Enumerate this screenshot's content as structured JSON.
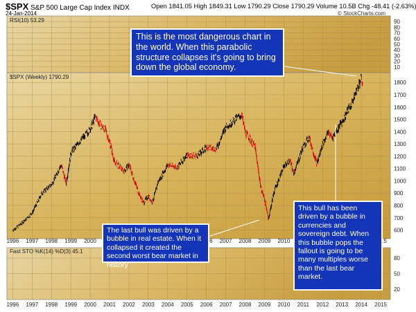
{
  "header": {
    "symbol": "$SPX",
    "name": "S&P 500 Large Cap Index",
    "exchange": "INDX",
    "date": "24-Jan-2014",
    "quote": "Open 1841.05  High 1849.31  Low 1790.29  Close 1790.29  Volume 10.5B  Chg -48.41 (-2.63%) ▼",
    "source": "© StockCharts.com"
  },
  "panels": {
    "rsi_label": "RSI(10) 53.29",
    "price_label": "$SPX (Weekly) 1790.29",
    "sto_label": "Fast STO %K(14) %D(3) 45.1"
  },
  "callouts": {
    "top": "This is the most dangerous chart in the world. When this parabolic structure collapses it's going to bring down the global economy.",
    "left": "The last bull was driven by a bubble in real estate. When it collapsed it created the second worst bear market in history",
    "right": "This bull has been driven by a bubble in currencies and sovereign debt. When this bubble pops the fallout is going to be many multiples worse than the last bear market."
  },
  "colors": {
    "background": "#d9b45f",
    "candle_up": "#000000",
    "candle_down": "#d40000",
    "callout_bg": "#1535b8",
    "callout_text": "#ffffff"
  },
  "chart_data": {
    "type": "line",
    "series_label": "$SPX (Weekly) 1790.29",
    "x_ticks": [
      "1996",
      "1997",
      "1998",
      "1999",
      "2000",
      "2001",
      "2002",
      "2003",
      "2004",
      "2005",
      "2006",
      "2007",
      "2008",
      "2009",
      "2010",
      "2011",
      "2012",
      "2013",
      "2014",
      "2015"
    ],
    "x": [
      1996.0,
      1996.5,
      1997.0,
      1997.5,
      1998.0,
      1998.5,
      1998.75,
      1999.0,
      1999.5,
      2000.0,
      2000.25,
      2000.5,
      2000.75,
      2001.0,
      2001.25,
      2001.75,
      2002.0,
      2002.5,
      2002.75,
      2003.0,
      2003.2,
      2003.5,
      2004.0,
      2004.5,
      2005.0,
      2005.5,
      2006.0,
      2006.5,
      2007.0,
      2007.5,
      2007.8,
      2008.0,
      2008.5,
      2008.8,
      2009.0,
      2009.2,
      2009.5,
      2010.0,
      2010.3,
      2010.5,
      2011.0,
      2011.3,
      2011.7,
      2012.0,
      2012.3,
      2012.5,
      2013.0,
      2013.5,
      2014.0,
      2014.07
    ],
    "y": [
      600,
      660,
      740,
      900,
      970,
      1130,
      980,
      1230,
      1330,
      1420,
      1520,
      1460,
      1420,
      1320,
      1150,
      1080,
      1130,
      900,
      820,
      880,
      820,
      990,
      1130,
      1110,
      1210,
      1200,
      1270,
      1260,
      1440,
      1500,
      1540,
      1400,
      1280,
      950,
      850,
      690,
      920,
      1120,
      1170,
      1060,
      1280,
      1350,
      1140,
      1300,
      1400,
      1350,
      1480,
      1630,
      1840,
      1790
    ],
    "y_ticks": [
      600,
      700,
      800,
      900,
      1000,
      1100,
      1200,
      1300,
      1400,
      1500,
      1600,
      1700,
      1800
    ],
    "ylim": [
      530,
      1880
    ],
    "xlim": [
      1995.7,
      2015.5
    ],
    "rsi_ticks": [
      10,
      20,
      30,
      40,
      50,
      60,
      70,
      80,
      90
    ],
    "sto_ticks": [
      20,
      50,
      80
    ]
  }
}
